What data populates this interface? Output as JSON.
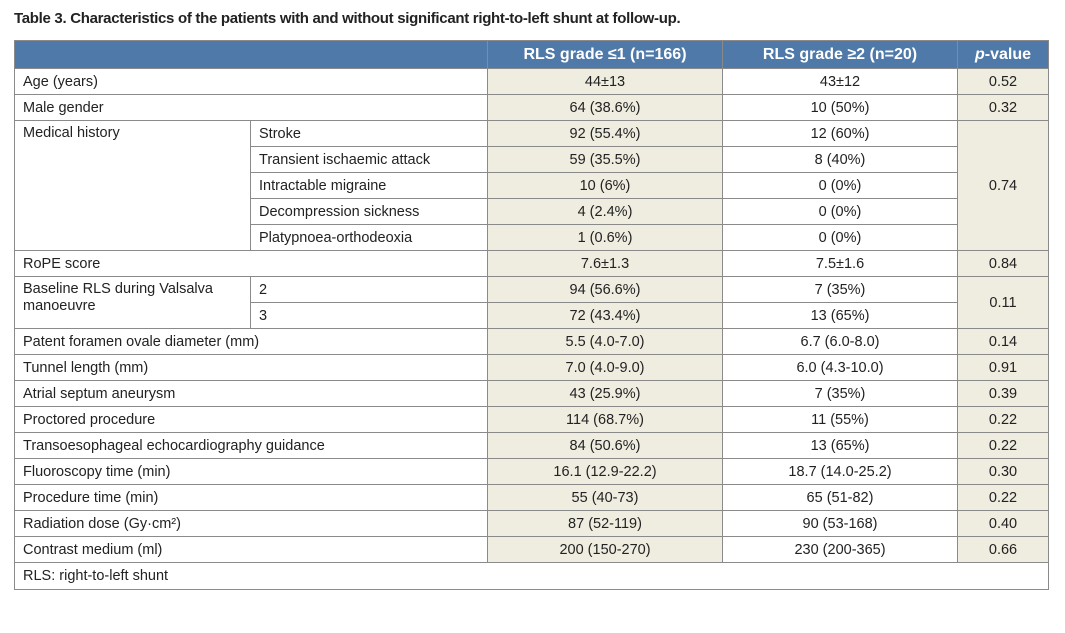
{
  "title": "Table 3. Characteristics of the patients with and without significant right-to-left shunt at follow-up.",
  "table": {
    "header": [
      "RLS grade ≤1 (n=166)",
      "RLS grade ≥2 (n=20)",
      [
        "p",
        "-value"
      ]
    ],
    "rows": [
      {
        "label": "Age (years)",
        "cells": [
          "44±13",
          "43±12"
        ],
        "p": "0.52"
      },
      {
        "label": "Male gender",
        "cells": [
          "64 (38.6%)",
          "10 (50%)"
        ],
        "p": "0.32"
      },
      {
        "label": "Medical history",
        "p": "0.74",
        "sub": [
          {
            "label": "Stroke",
            "cells": [
              "92 (55.4%)",
              "12 (60%)"
            ]
          },
          {
            "label": "Transient ischaemic attack",
            "cells": [
              "59 (35.5%)",
              "8 (40%)"
            ]
          },
          {
            "label": "Intractable migraine",
            "cells": [
              "10 (6%)",
              "0 (0%)"
            ]
          },
          {
            "label": "Decompression sickness",
            "cells": [
              "4 (2.4%)",
              "0 (0%)"
            ]
          },
          {
            "label": "Platypnoea-orthodeoxia",
            "cells": [
              "1 (0.6%)",
              "0 (0%)"
            ]
          }
        ]
      },
      {
        "label": "RoPE score",
        "cells": [
          "7.6±1.3",
          "7.5±1.6"
        ],
        "p": "0.84"
      },
      {
        "label": "Baseline RLS during Valsalva manoeuvre",
        "p": "0.11",
        "sub": [
          {
            "label": "2",
            "cells": [
              "94 (56.6%)",
              "7 (35%)"
            ]
          },
          {
            "label": "3",
            "cells": [
              "72 (43.4%)",
              "13 (65%)"
            ]
          }
        ]
      },
      {
        "label": "Patent foramen ovale diameter (mm)",
        "cells": [
          "5.5 (4.0-7.0)",
          "6.7 (6.0-8.0)"
        ],
        "p": "0.14"
      },
      {
        "label": "Tunnel length (mm)",
        "cells": [
          "7.0 (4.0-9.0)",
          "6.0 (4.3-10.0)"
        ],
        "p": "0.91"
      },
      {
        "label": "Atrial septum aneurysm",
        "cells": [
          "43 (25.9%)",
          "7 (35%)"
        ],
        "p": "0.39"
      },
      {
        "label": "Proctored procedure",
        "cells": [
          "114 (68.7%)",
          "11 (55%)"
        ],
        "p": "0.22"
      },
      {
        "label": "Transoesophageal echocardiography guidance",
        "cells": [
          "84 (50.6%)",
          "13 (65%)"
        ],
        "p": "0.22"
      },
      {
        "label": "Fluoroscopy time (min)",
        "cells": [
          "16.1 (12.9-22.2)",
          "18.7 (14.0-25.2)"
        ],
        "p": "0.30"
      },
      {
        "label": "Procedure time (min)",
        "cells": [
          "55 (40-73)",
          "65 (51-82)"
        ],
        "p": "0.22"
      },
      {
        "label": "Radiation dose (Gy·cm²)",
        "cells": [
          "87 (52-119)",
          "90 (53-168)"
        ],
        "p": "0.40"
      },
      {
        "label": "Contrast medium (ml)",
        "cells": [
          "200 (150-270)",
          "230 (200-365)"
        ],
        "p": "0.66"
      }
    ],
    "footnote": "RLS: right-to-left shunt"
  }
}
